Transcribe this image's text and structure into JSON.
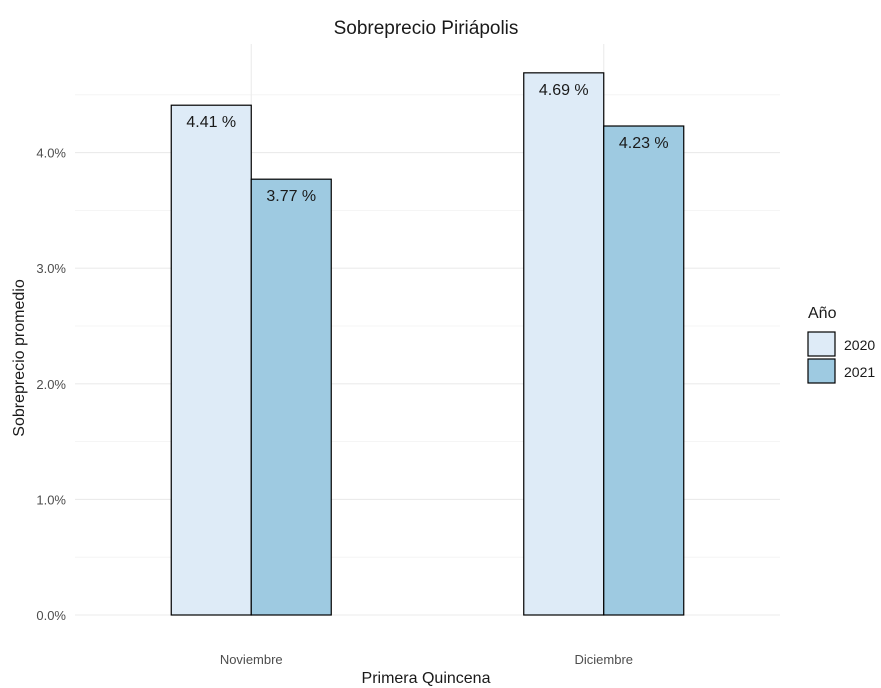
{
  "chart_data": {
    "type": "bar",
    "title": "Sobreprecio Piriápolis",
    "xlabel": "Primera Quincena",
    "ylabel": "Sobreprecio promedio",
    "categories": [
      "Noviembre",
      "Diciembre"
    ],
    "series": [
      {
        "name": "2020",
        "values": [
          4.41,
          4.69
        ],
        "labels": [
          "4.41 %",
          "4.69 %"
        ],
        "color": "#deebf7"
      },
      {
        "name": "2021",
        "values": [
          3.77,
          4.23
        ],
        "labels": [
          "3.77 %",
          "4.23 %"
        ],
        "color": "#9ecae1"
      }
    ],
    "ylim": [
      0,
      4.69
    ],
    "yticks": [
      0,
      1,
      2,
      3,
      4
    ],
    "ytick_labels": [
      "0.0%",
      "1.0%",
      "2.0%",
      "3.0%",
      "4.0%"
    ],
    "legend": {
      "title": "Año",
      "position": "right"
    },
    "grid": true
  }
}
